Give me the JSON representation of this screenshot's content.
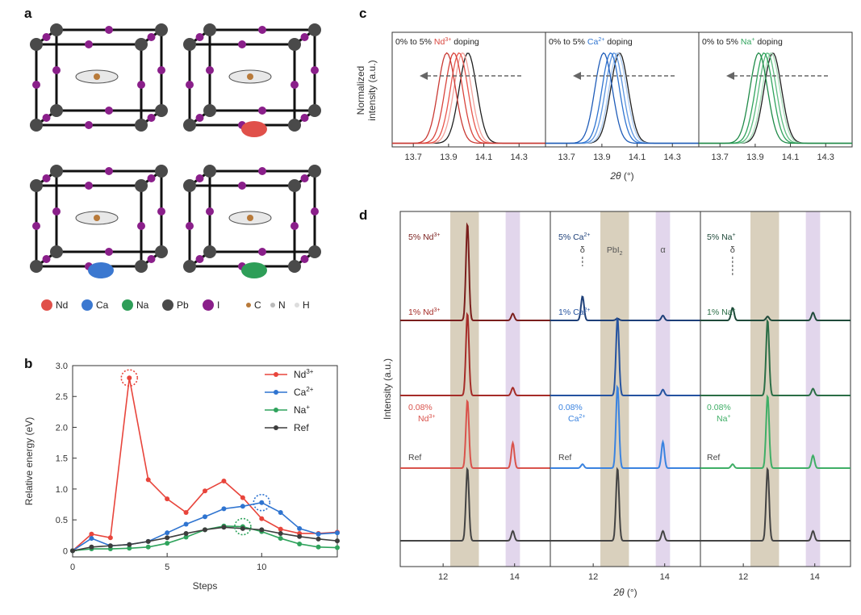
{
  "panel_letters": {
    "a": "a",
    "b": "b",
    "c": "c",
    "d": "d"
  },
  "panel_a": {
    "legend": [
      {
        "label": "Nd",
        "color": "#e0504a"
      },
      {
        "label": "Ca",
        "color": "#3b78d0"
      },
      {
        "label": "Na",
        "color": "#2e9e58"
      },
      {
        "label": "Pb",
        "color": "#4a4a4a"
      },
      {
        "label": "I",
        "color": "#8a1f8a"
      },
      {
        "label": "C",
        "color": "#b87a3a"
      },
      {
        "label": "N",
        "color": "#bbbbbb"
      },
      {
        "label": "H",
        "color": "#dddddd"
      }
    ],
    "dopant_colors": [
      "#e0504a",
      "#3b78d0",
      "#2e9e58"
    ]
  },
  "chart_data": [
    {
      "id": "b",
      "type": "line",
      "xlabel": "Steps",
      "ylabel": "Relative energy (eV)",
      "xlim": [
        0,
        14
      ],
      "ylim": [
        -0.1,
        3.0
      ],
      "xticks": [
        "0",
        "5",
        "10"
      ],
      "yticks": [
        "0",
        "0.5",
        "1.0",
        "1.5",
        "2.0",
        "2.5",
        "3.0"
      ],
      "legend_position": "top-right",
      "series": [
        {
          "name": "Nd",
          "sup": "3+",
          "color": "#e8453c",
          "x": [
            0,
            1,
            2,
            3,
            4,
            5,
            6,
            7,
            8,
            9,
            10,
            11,
            12,
            13,
            14
          ],
          "y": [
            0,
            0.27,
            0.21,
            2.8,
            1.15,
            0.84,
            0.62,
            0.97,
            1.13,
            0.86,
            0.52,
            0.35,
            0.28,
            0.28,
            0.3
          ]
        },
        {
          "name": "Ca",
          "sup": "2+",
          "color": "#2f74d0",
          "x": [
            0,
            1,
            2,
            3,
            4,
            5,
            6,
            7,
            8,
            9,
            10,
            11,
            12,
            13,
            14
          ],
          "y": [
            0,
            0.2,
            0.08,
            0.1,
            0.15,
            0.29,
            0.43,
            0.55,
            0.68,
            0.72,
            0.78,
            0.62,
            0.36,
            0.27,
            0.29
          ]
        },
        {
          "name": "Na",
          "sup": "+",
          "color": "#2fa35c",
          "x": [
            0,
            1,
            2,
            3,
            4,
            5,
            6,
            7,
            8,
            9,
            10,
            11,
            12,
            13,
            14
          ],
          "y": [
            0,
            0.03,
            0.03,
            0.04,
            0.06,
            0.12,
            0.22,
            0.34,
            0.4,
            0.39,
            0.31,
            0.2,
            0.11,
            0.06,
            0.05
          ]
        },
        {
          "name": "Ref",
          "sup": "",
          "color": "#3d3d3d",
          "x": [
            0,
            1,
            2,
            3,
            4,
            5,
            6,
            7,
            8,
            9,
            10,
            11,
            12,
            13,
            14
          ],
          "y": [
            0,
            0.06,
            0.08,
            0.1,
            0.15,
            0.21,
            0.28,
            0.34,
            0.38,
            0.36,
            0.34,
            0.28,
            0.23,
            0.19,
            0.16
          ]
        }
      ],
      "highlighted_points": [
        {
          "series": "Nd",
          "x": 3,
          "y": 2.8
        },
        {
          "series": "Ca",
          "x": 10,
          "y": 0.78
        },
        {
          "series": "Na",
          "x": 9,
          "y": 0.39
        }
      ]
    },
    {
      "id": "c",
      "type": "line",
      "xlabel_italic": "2θ",
      "xlabel_unit": " (°)",
      "ylabel": [
        "Normalized",
        "intensity (a.u.)"
      ],
      "xlim": [
        13.58,
        14.45
      ],
      "xticks": [
        "13.7",
        "13.9",
        "14.1",
        "14.3"
      ],
      "panels": [
        {
          "title_pre": "0% to 5% ",
          "ion": "Nd",
          "sup": "3+",
          "title_post": " doping",
          "color": "#d8443c",
          "colors": [
            "#1f1f1f",
            "#f2a29c",
            "#e8564c",
            "#d8443c",
            "#c93a34"
          ],
          "peaks": [
            14.01,
            13.98,
            13.96,
            13.93,
            13.89
          ]
        },
        {
          "title_pre": "0% to 5% ",
          "ion": "Ca",
          "sup": "2+",
          "title_post": " doping",
          "color": "#2f74d0",
          "colors": [
            "#1f1f1f",
            "#a8c8f0",
            "#5b95e0",
            "#2f74d0",
            "#1f5cb8"
          ],
          "peaks": [
            14.0,
            13.99,
            13.97,
            13.95,
            13.91
          ]
        },
        {
          "title_pre": "0% to 5% ",
          "ion": "Na",
          "sup": "+",
          "title_post": " doping",
          "color": "#2fa35c",
          "colors": [
            "#1f1f1f",
            "#a6dcb8",
            "#5dbb80",
            "#2fa35c",
            "#1f8a48"
          ],
          "peaks": [
            14.0,
            13.99,
            13.97,
            13.95,
            13.92
          ]
        }
      ]
    },
    {
      "id": "d",
      "type": "line",
      "xlabel_italic": "2θ",
      "xlabel_unit": " (°)",
      "ylabel": "Intensity (a.u.)",
      "xlim": [
        10.8,
        15.0
      ],
      "xticks": [
        "12",
        "14"
      ],
      "bands": [
        {
          "from": 12.2,
          "to": 13.0,
          "color": "#d9d0bd"
        },
        {
          "from": 13.75,
          "to": 14.15,
          "color": "#e2d6ec"
        }
      ],
      "band_labels": {
        "pbi2_main": "PbI",
        "pbi2_sub": "2",
        "alpha": "α",
        "delta": "δ"
      },
      "peak_positions": {
        "alpha": 12.68,
        "pbi2": 13.95,
        "delta": 11.7
      },
      "panels": [
        {
          "ion": "Nd",
          "sup": "3+",
          "color": "#c8423c",
          "dark": "#7a1e1c",
          "traces": [
            {
              "label_lines": [
                "5% Nd"
              ],
              "sup": "3+",
              "color": "#7a1e1c",
              "main": 1.0,
              "pbi2": 0.07,
              "delta": 0
            },
            {
              "label_lines": [
                "1% Nd"
              ],
              "sup": "3+",
              "color": "#a52c28",
              "main": 0.85,
              "pbi2": 0.08,
              "delta": 0
            },
            {
              "label_lines": [
                "0.08%",
                "Nd"
              ],
              "sup": "3+",
              "color": "#d9534c",
              "main": 0.7,
              "pbi2": 0.26,
              "delta": 0
            },
            {
              "label_lines": [
                "Ref"
              ],
              "sup": "",
              "color": "#444444",
              "main": 0.75,
              "pbi2": 0.1,
              "delta": 0
            }
          ]
        },
        {
          "ion": "Ca",
          "sup": "2+",
          "color": "#2f74d0",
          "dark": "#1d3f78",
          "traces": [
            {
              "label_lines": [
                "5% Ca"
              ],
              "sup": "2+",
              "color": "#1d3f78",
              "main": 0.02,
              "pbi2": 0.05,
              "delta": 0.25
            },
            {
              "label_lines": [
                "1% Ca"
              ],
              "sup": "2+",
              "color": "#2553a0",
              "main": 0.8,
              "pbi2": 0.06,
              "delta": 0
            },
            {
              "label_lines": [
                "0.08%",
                "Ca"
              ],
              "sup": "2+",
              "color": "#3a83e0",
              "main": 0.85,
              "pbi2": 0.27,
              "delta": 0.04
            },
            {
              "label_lines": [
                "Ref"
              ],
              "sup": "",
              "color": "#444444",
              "main": 0.75,
              "pbi2": 0.1,
              "delta": 0
            }
          ]
        },
        {
          "ion": "Na",
          "sup": "+",
          "color": "#2fa35c",
          "dark": "#1f5c3c",
          "traces": [
            {
              "label_lines": [
                "5% Na"
              ],
              "sup": "+",
              "color": "#1f4a3a",
              "main": 0.04,
              "pbi2": 0.08,
              "delta": 0.13
            },
            {
              "label_lines": [
                "1% Na"
              ],
              "sup": "+",
              "color": "#2b6e46",
              "main": 0.78,
              "pbi2": 0.07,
              "delta": 0
            },
            {
              "label_lines": [
                "0.08%",
                "Na"
              ],
              "sup": "+",
              "color": "#3fae66",
              "main": 0.75,
              "pbi2": 0.13,
              "delta": 0.04
            },
            {
              "label_lines": [
                "Ref"
              ],
              "sup": "",
              "color": "#444444",
              "main": 0.75,
              "pbi2": 0.1,
              "delta": 0
            }
          ]
        }
      ]
    }
  ]
}
